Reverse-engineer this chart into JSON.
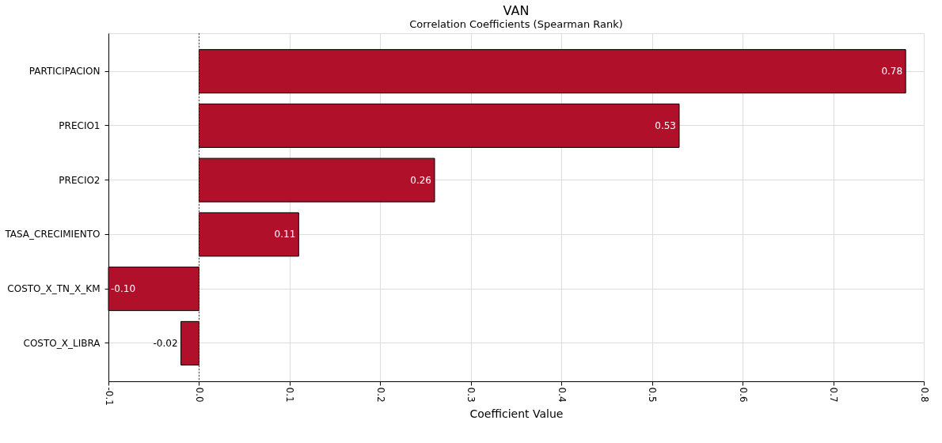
{
  "chart_data": {
    "type": "bar",
    "orientation": "horizontal",
    "title": "VAN",
    "subtitle": "Correlation Coefficients (Spearman Rank)",
    "xlabel": "Coefficient Value",
    "categories": [
      "PARTICIPACION",
      "PRECIO1",
      "PRECIO2",
      "TASA_CRECIMIENTO",
      "COSTO_X_TN_X_KM",
      "COSTO_X_LIBRA"
    ],
    "values": [
      0.78,
      0.53,
      0.26,
      0.11,
      -0.1,
      -0.02
    ],
    "value_labels": [
      "0.78",
      "0.53",
      "0.26",
      "0.11",
      "-0.10",
      "-0.02"
    ],
    "color": "#b0102a",
    "xlim": [
      -0.1,
      0.8
    ],
    "xticks": [
      {
        "value": -0.1,
        "label": "-0.1"
      },
      {
        "value": 0,
        "label": "0.0"
      },
      {
        "value": 0.1,
        "label": "0.1"
      },
      {
        "value": 0.2,
        "label": "0.2"
      },
      {
        "value": 0.3,
        "label": "0.3"
      },
      {
        "value": 0.4,
        "label": "0.4"
      },
      {
        "value": 0.5,
        "label": "0.5"
      },
      {
        "value": 0.6,
        "label": "0.6"
      },
      {
        "value": 0.7,
        "label": "0.7"
      },
      {
        "value": 0.8,
        "label": "0.8"
      }
    ],
    "ref_lines": [
      {
        "axis": "x",
        "value": 0,
        "color": "#c00000",
        "line_style": "dotted"
      }
    ],
    "grid": true
  }
}
